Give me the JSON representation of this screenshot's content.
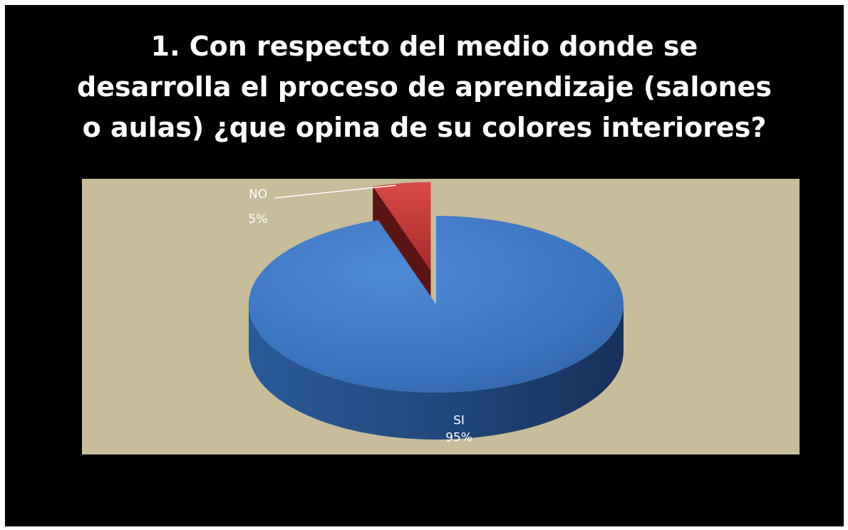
{
  "chart_data": {
    "type": "pie",
    "title": [
      "1. Con  respecto del medio donde se",
      "desarrolla el proceso de aprendizaje (salones",
      "o aulas) ¿que opina de su colores interiores?"
    ],
    "categories": [
      "SI",
      "NO"
    ],
    "values": [
      95,
      5
    ],
    "data_labels": [
      {
        "category": "SI",
        "percent": "95%"
      },
      {
        "category": "NO",
        "percent": "5%"
      }
    ],
    "colors": {
      "SI": "#3c76c4",
      "NO": "#c0393a",
      "plot_background": "#c7bd9a",
      "slide_background": "#000000"
    },
    "style": "3d-exploded",
    "legend": "none"
  }
}
